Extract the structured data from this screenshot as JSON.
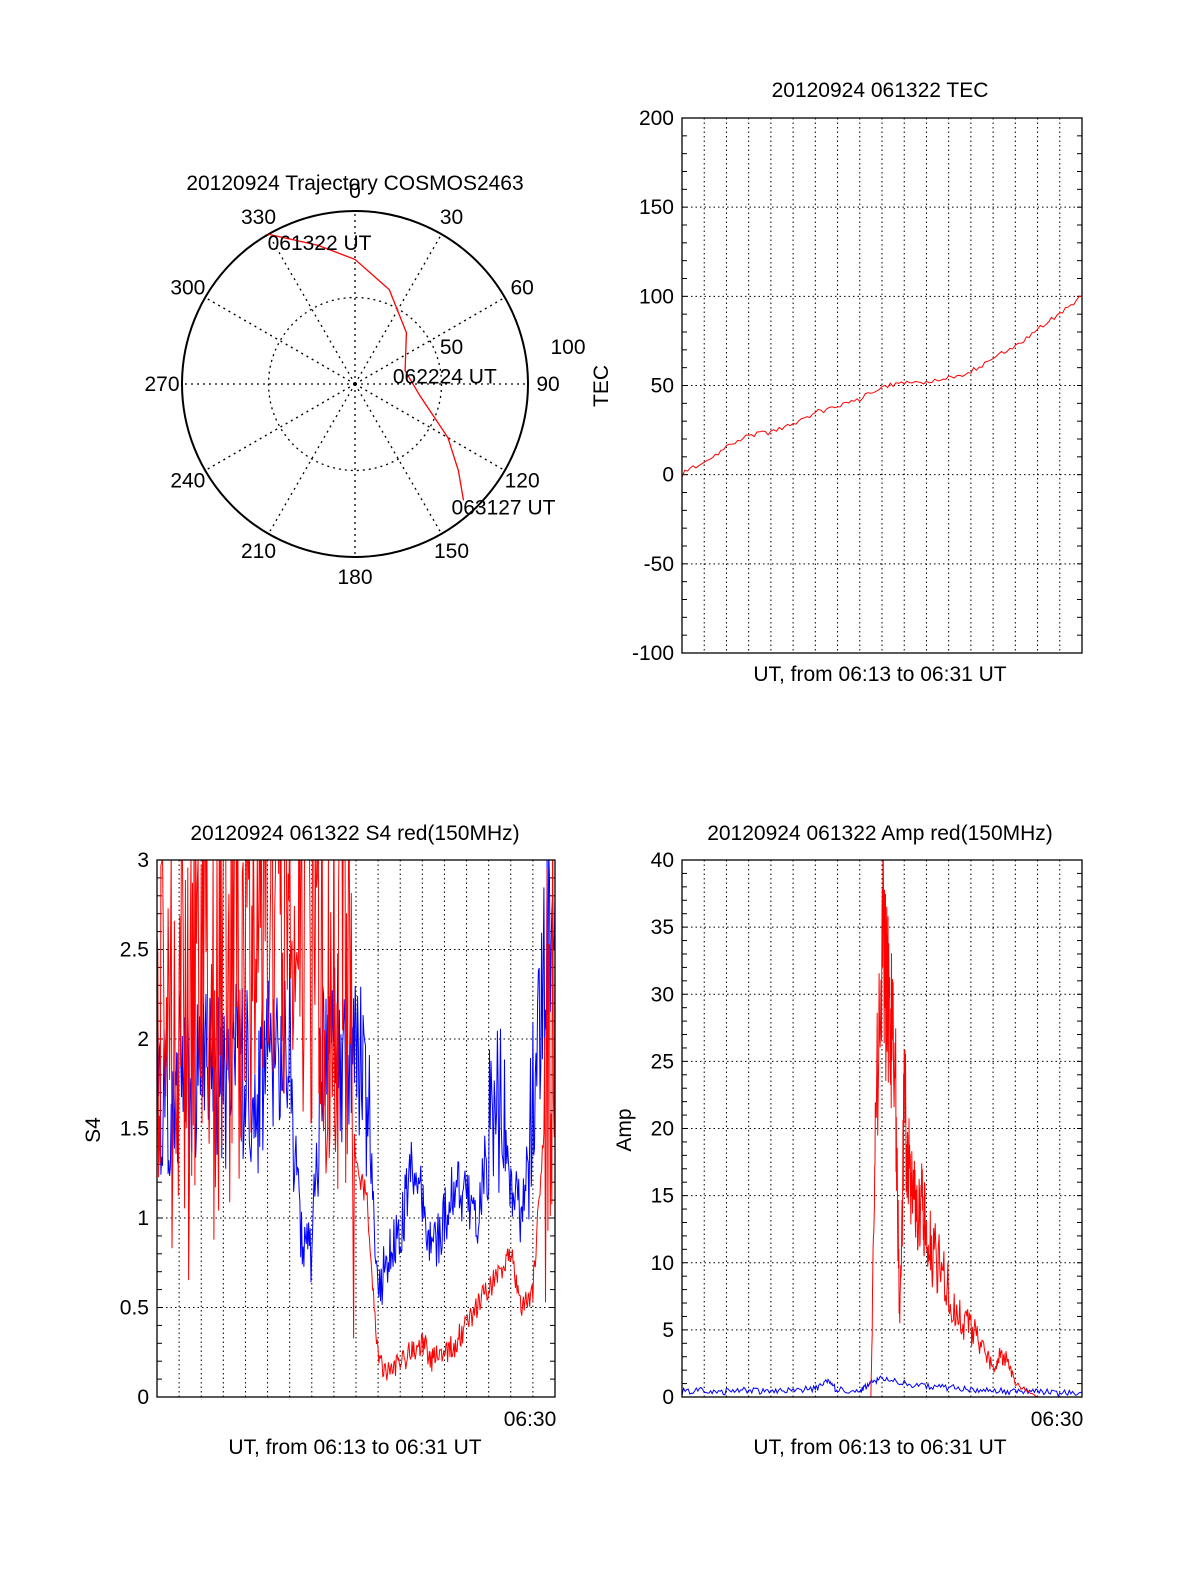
{
  "chart_data": [
    {
      "id": "trajectory",
      "type": "polar",
      "title": "20120924 Trajectory COSMOS2463",
      "angle_labels": [
        "0",
        "30",
        "60",
        "90",
        "120",
        "150",
        "180",
        "210",
        "240",
        "270",
        "300",
        "330"
      ],
      "radial_ticks": [
        50,
        100
      ],
      "radial_labels": [
        "50",
        "100"
      ],
      "r_max": 100,
      "line_color": "#ff0000",
      "track": [
        {
          "az": 330,
          "r": 100
        },
        {
          "az": 345,
          "r": 83
        },
        {
          "az": 0,
          "r": 72
        },
        {
          "az": 20,
          "r": 58
        },
        {
          "az": 45,
          "r": 42
        },
        {
          "az": 75,
          "r": 30
        },
        {
          "az": 100,
          "r": 38
        },
        {
          "az": 120,
          "r": 62
        },
        {
          "az": 130,
          "r": 78
        },
        {
          "az": 137,
          "r": 92
        }
      ],
      "annotations": [
        {
          "text": "061322 UT",
          "az": 333,
          "r": 96
        },
        {
          "text": "062224 UT",
          "az": 74,
          "r": 30
        },
        {
          "text": "063127 UT",
          "az": 137,
          "r": 92
        }
      ]
    },
    {
      "id": "tec",
      "type": "line",
      "title": "20120924 061322 TEC",
      "xlabel": "UT, from 06:13 to 06:31 UT",
      "ylabel": "TEC",
      "xlim": [
        0,
        18
      ],
      "ylim": [
        -100,
        200
      ],
      "yticks": [
        -100,
        -50,
        0,
        50,
        100,
        150,
        200
      ],
      "ytick_labels": [
        "-100",
        "-50",
        "0",
        "50",
        "100",
        "150",
        "200"
      ],
      "grid": true,
      "line_color": "#ff0000",
      "x": [
        0,
        1,
        2,
        3,
        4,
        5,
        6,
        7,
        8,
        9,
        10,
        11,
        12,
        13,
        14,
        15,
        16,
        17,
        18
      ],
      "y": [
        0,
        8,
        15,
        22,
        24,
        28,
        35,
        38,
        42,
        50,
        51,
        52,
        54,
        58,
        65,
        72,
        82,
        90,
        100
      ]
    },
    {
      "id": "s4",
      "type": "line",
      "title": "20120924 061322 S4 red(150MHz)",
      "xlabel": "UT, from 06:13 to 06:31 UT",
      "ylabel": "S4",
      "xtick_label": "06:30",
      "xlim": [
        0,
        18
      ],
      "ylim": [
        0,
        3
      ],
      "yticks": [
        0,
        0.5,
        1,
        1.5,
        2,
        2.5,
        3
      ],
      "ytick_labels": [
        "0",
        "0.5",
        "1",
        "1.5",
        "2",
        "2.5",
        "3"
      ],
      "grid": true,
      "series": [
        {
          "color": "#0000ff",
          "x": [
            0,
            0.5,
            1,
            1.5,
            2,
            2.5,
            3,
            3.5,
            4,
            4.5,
            5,
            5.5,
            6,
            6.5,
            7,
            7.5,
            8,
            8.5,
            9,
            9.5,
            10,
            10.5,
            11,
            11.5,
            12,
            12.5,
            13,
            13.5,
            14,
            14.5,
            15,
            15.5,
            16,
            16.5,
            17,
            17.5,
            18
          ],
          "y": [
            1.7,
            1.6,
            1.8,
            1.7,
            1.9,
            1.8,
            1.7,
            1.9,
            1.8,
            1.7,
            1.9,
            1.8,
            2.0,
            0.9,
            0.8,
            2.1,
            2.2,
            1.8,
            1.9,
            1.7,
            0.6,
            0.8,
            0.9,
            1.3,
            1.1,
            0.8,
            1.0,
            1.2,
            1.1,
            1.0,
            1.5,
            1.6,
            1.2,
            1.0,
            1.7,
            2.4,
            2.8
          ]
        },
        {
          "color": "#ff0000",
          "x": [
            0,
            0.5,
            1,
            1.5,
            2,
            2.5,
            3,
            3.5,
            4,
            4.5,
            5,
            5.5,
            6,
            6.5,
            7,
            7.5,
            8,
            8.5,
            9,
            9.5,
            10,
            10.5,
            11,
            11.5,
            12,
            12.5,
            13,
            13.5,
            14,
            14.5,
            15,
            15.5,
            16,
            16.5,
            17,
            17.5,
            18
          ],
          "y": [
            2.0,
            1.6,
            2.4,
            1.8,
            2.6,
            1.9,
            2.5,
            2.2,
            2.7,
            2.3,
            2.8,
            2.6,
            2.8,
            2.9,
            2.7,
            2.6,
            2.4,
            2.5,
            1.3,
            1.1,
            0.2,
            0.15,
            0.2,
            0.25,
            0.3,
            0.2,
            0.25,
            0.3,
            0.4,
            0.5,
            0.6,
            0.7,
            0.8,
            0.5,
            0.6,
            1.5,
            2.5
          ]
        }
      ]
    },
    {
      "id": "amp",
      "type": "line",
      "title": "20120924 061322 Amp red(150MHz)",
      "xlabel": "UT, from 06:13 to 06:31 UT",
      "ylabel": "Amp",
      "xtick_label": "06:30",
      "xlim": [
        0,
        18
      ],
      "ylim": [
        0,
        40
      ],
      "yticks": [
        0,
        5,
        10,
        15,
        20,
        25,
        30,
        35,
        40
      ],
      "ytick_labels": [
        "0",
        "5",
        "10",
        "15",
        "20",
        "25",
        "30",
        "35",
        "40"
      ],
      "grid": true,
      "series": [
        {
          "color": "#0000ff",
          "x": [
            0,
            1,
            2,
            3,
            4,
            5,
            6,
            6.5,
            7,
            8,
            8.5,
            9,
            10,
            11,
            12,
            13,
            14,
            15,
            16,
            17,
            18
          ],
          "y": [
            0.4,
            0.5,
            0.4,
            0.5,
            0.4,
            0.5,
            0.6,
            1.2,
            0.5,
            0.5,
            1.0,
            1.4,
            1.0,
            0.8,
            0.7,
            0.6,
            0.5,
            0.4,
            0.4,
            0.3,
            0.3
          ]
        },
        {
          "color": "#ff0000",
          "x": [
            8.5,
            8.7,
            9.0,
            9.2,
            9.4,
            9.6,
            9.8,
            10.0,
            10.2,
            10.4,
            10.6,
            10.8,
            11.0,
            11.2,
            11.5,
            12.0,
            12.5,
            13.0,
            13.5,
            14.0,
            14.3,
            14.6,
            15.0,
            15.5,
            16.0
          ],
          "y": [
            0,
            18,
            36,
            30,
            27,
            24,
            5,
            22,
            17,
            15,
            13,
            14,
            12,
            11,
            10,
            8,
            6,
            5,
            4,
            2,
            3,
            3,
            1,
            0.5,
            0
          ]
        }
      ]
    }
  ]
}
